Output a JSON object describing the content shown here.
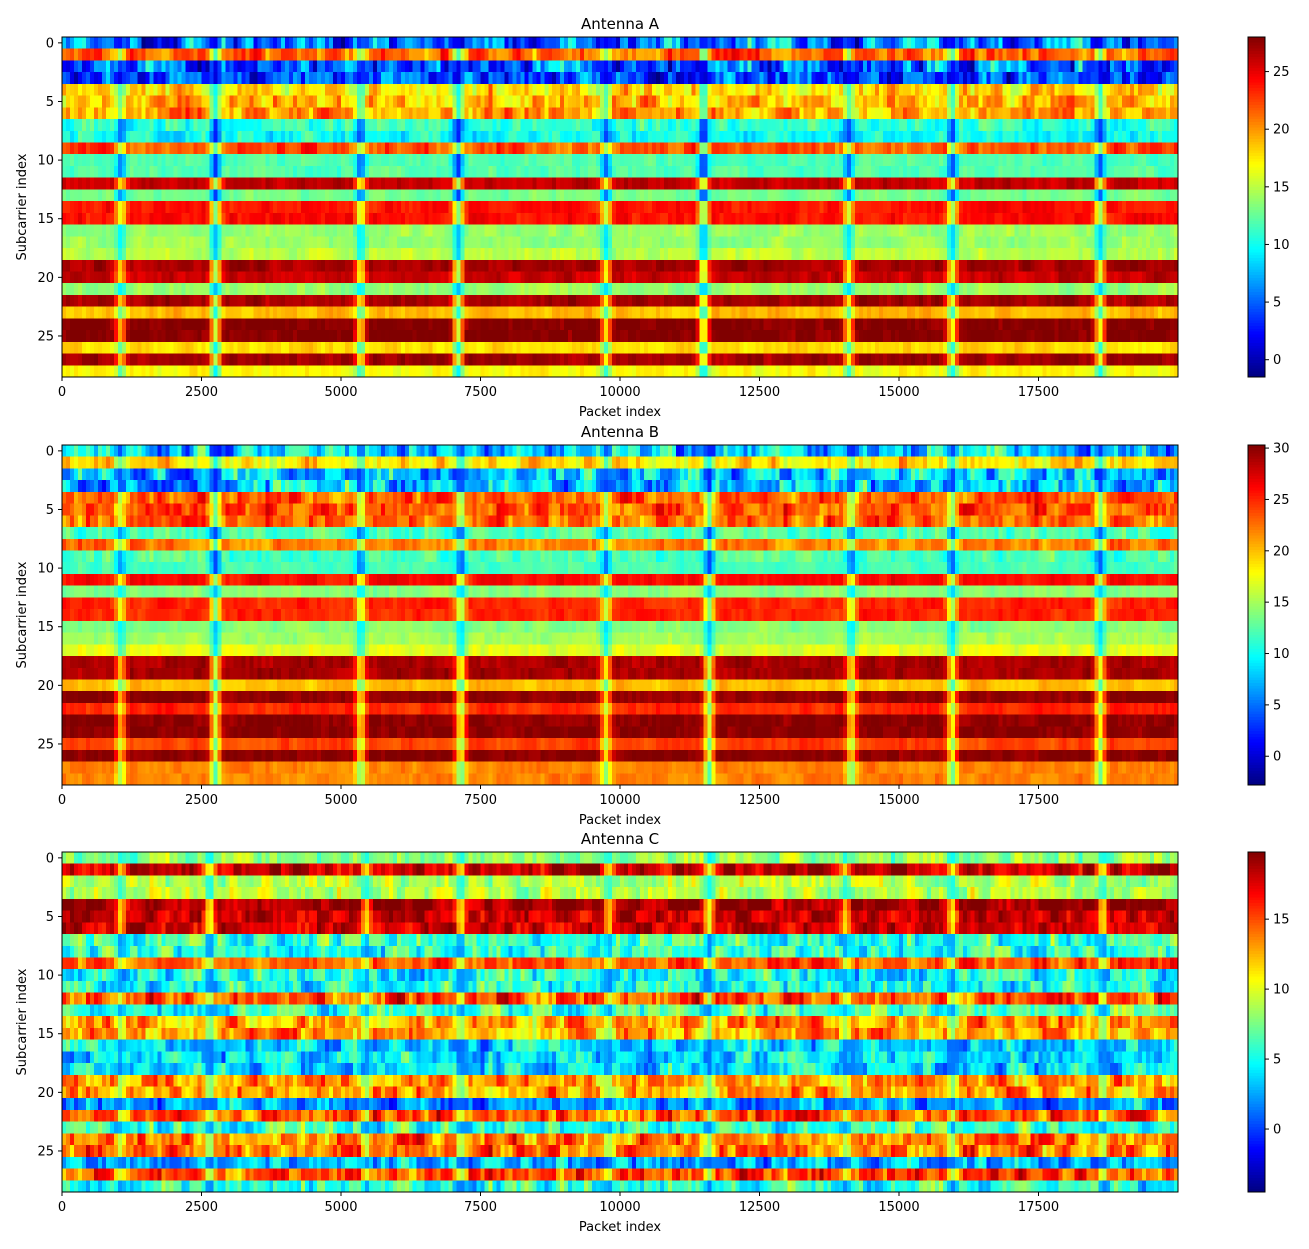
{
  "chart_data": [
    {
      "type": "heatmap",
      "title": "Antenna A",
      "xlabel": "Packet index",
      "ylabel": "Subcarrier index",
      "xlim": [
        0,
        20000
      ],
      "ylim": [
        28.5,
        -0.5
      ],
      "xticks": [
        0,
        2500,
        5000,
        7500,
        10000,
        12500,
        15000,
        17500
      ],
      "yticks": [
        0,
        5,
        10,
        15,
        20,
        25
      ],
      "colormap": "jet",
      "colorbar": {
        "min": -1.5,
        "max": 28,
        "ticks": [
          0,
          5,
          10,
          15,
          20,
          25
        ]
      },
      "n_subcarriers": 29,
      "n_packets": 20000,
      "row_levels": [
        6,
        21,
        5,
        4,
        18,
        19,
        20,
        11,
        10,
        22,
        12,
        12,
        26,
        13,
        24,
        24,
        14,
        14,
        15,
        27,
        26,
        14,
        27,
        19,
        28,
        28,
        18,
        27,
        17
      ],
      "row_variability": [
        5,
        3,
        5,
        4,
        3,
        3,
        3,
        2,
        2,
        2,
        1,
        1,
        1,
        1,
        1,
        1,
        1,
        1,
        1,
        1,
        1,
        1,
        1,
        1,
        1,
        1,
        1,
        1,
        1
      ],
      "event_columns": [
        1050,
        2750,
        5350,
        7100,
        9750,
        11500,
        14100,
        15950,
        18600
      ],
      "event_strength": [
        0.7,
        1.0,
        0.8,
        1.0,
        0.8,
        1.0,
        0.8,
        0.9,
        0.9
      ]
    },
    {
      "type": "heatmap",
      "title": "Antenna B",
      "xlabel": "Packet index",
      "ylabel": "Subcarrier index",
      "xlim": [
        0,
        20000
      ],
      "ylim": [
        28.5,
        -0.5
      ],
      "xticks": [
        0,
        2500,
        5000,
        7500,
        10000,
        12500,
        15000,
        17500
      ],
      "yticks": [
        0,
        5,
        10,
        15,
        20,
        25
      ],
      "colormap": "jet",
      "colorbar": {
        "min": -2.8,
        "max": 30.3,
        "ticks": [
          0,
          5,
          10,
          15,
          20,
          25,
          30
        ]
      },
      "n_subcarriers": 29,
      "n_packets": 20000,
      "row_levels": [
        8,
        19,
        8,
        8,
        23,
        24,
        23,
        12,
        22,
        12,
        12,
        26,
        14,
        25,
        25,
        14,
        15,
        17,
        29,
        29,
        20,
        30,
        25,
        30,
        30,
        24,
        30,
        22,
        22
      ],
      "row_variability": [
        5,
        3,
        5,
        5,
        3,
        3,
        3,
        2,
        2,
        2,
        1,
        1,
        1,
        1,
        1,
        1,
        1,
        1,
        1,
        1,
        1,
        1,
        1,
        1,
        1,
        1,
        1,
        1,
        1
      ],
      "event_columns": [
        1050,
        2750,
        5350,
        7150,
        9750,
        11600,
        14150,
        15950,
        18600
      ],
      "event_strength": [
        0.7,
        1.0,
        0.8,
        0.9,
        0.8,
        1.0,
        0.8,
        0.9,
        0.9
      ]
    },
    {
      "type": "heatmap",
      "title": "Antenna C",
      "xlabel": "Packet index",
      "ylabel": "Subcarrier index",
      "xlim": [
        0,
        20000
      ],
      "ylim": [
        28.5,
        -0.5
      ],
      "xticks": [
        0,
        2500,
        5000,
        7500,
        10000,
        12500,
        15000,
        17500
      ],
      "yticks": [
        0,
        5,
        10,
        15,
        20,
        25
      ],
      "colormap": "jet",
      "colorbar": {
        "min": -4.5,
        "max": 19.8,
        "ticks": [
          0,
          5,
          10,
          15
        ]
      },
      "n_subcarriers": 29,
      "n_packets": 20000,
      "row_levels": [
        8,
        18,
        9,
        9,
        19,
        18,
        18,
        6,
        6,
        15,
        5,
        5,
        15,
        6,
        13,
        13,
        4,
        4,
        4,
        13,
        13,
        2,
        15,
        6,
        14,
        14,
        3,
        15,
        5
      ],
      "row_variability": [
        2,
        2,
        2,
        2,
        2,
        2,
        2,
        3,
        3,
        2,
        3,
        3,
        3,
        3,
        3,
        3,
        3,
        3,
        3,
        3,
        3,
        3,
        3,
        3,
        3,
        3,
        3,
        3,
        3
      ],
      "event_columns": [
        1050,
        2650,
        5450,
        7150,
        9800,
        11600,
        14050,
        15950,
        18650
      ],
      "event_strength": [
        0.8,
        1.0,
        0.8,
        0.9,
        0.8,
        1.0,
        0.8,
        0.9,
        0.9
      ]
    }
  ]
}
